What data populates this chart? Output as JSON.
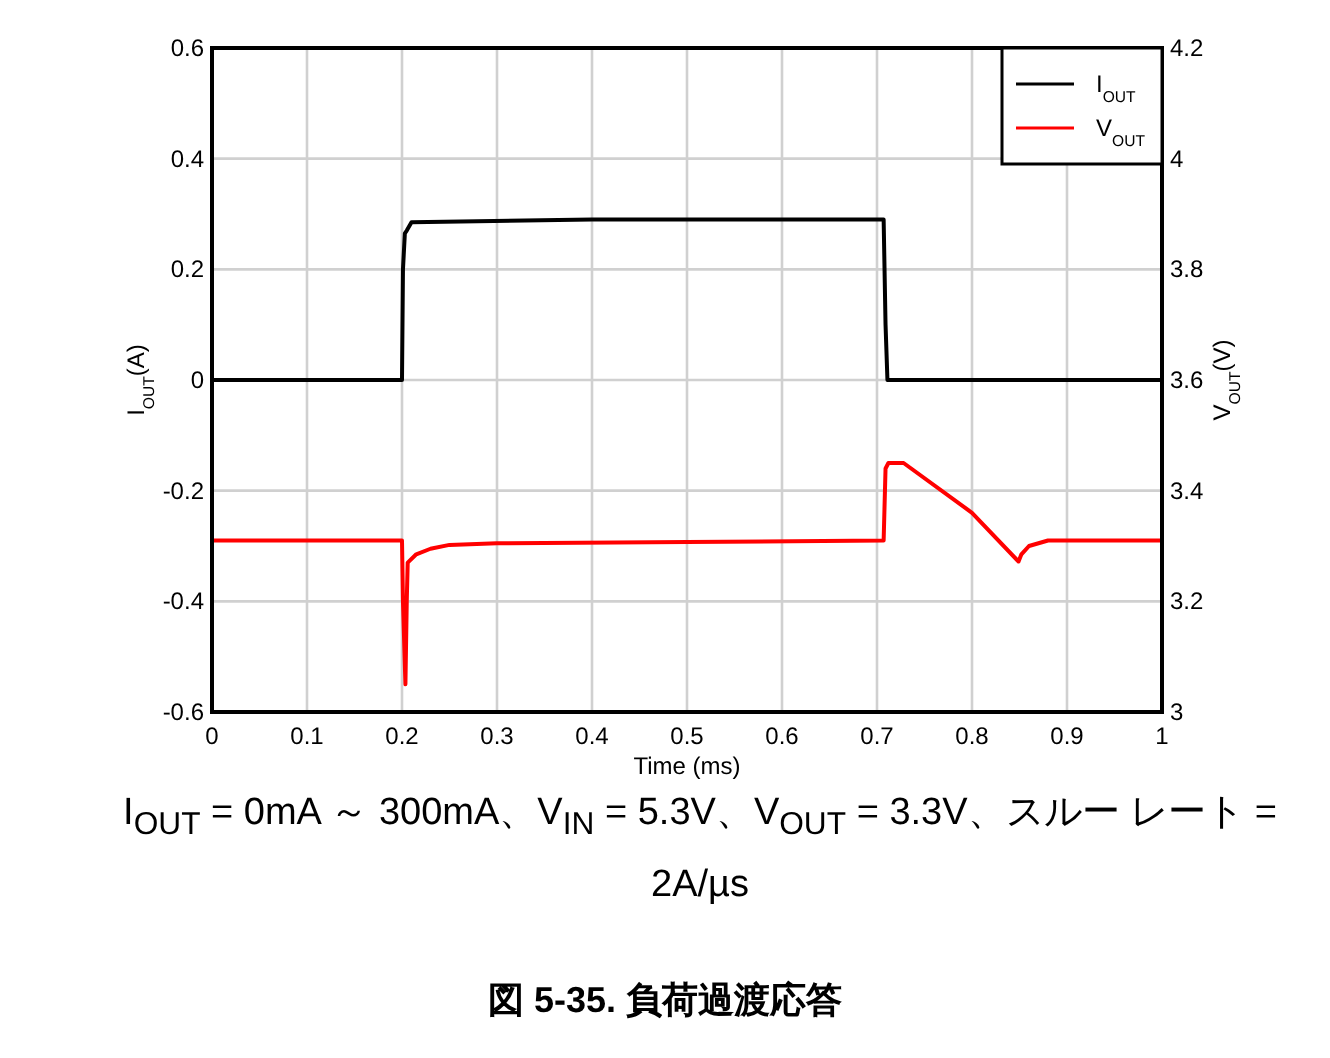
{
  "chart_data": {
    "type": "line",
    "title": "図 5-35. 負荷過渡応答",
    "xlabel": "Time (ms)",
    "ylabel": "I$_{OUT}$(A)",
    "y2label": "V$_{OUT}$(V)",
    "annotations": [
      "I$_{OUT}$ = 0mA ～ 300mA、V$_{IN}$ = 5.3V、V$_{OUT}$ = 3.3V、スルー レート = 2A/µs"
    ],
    "xlim": [
      0,
      1
    ],
    "xticks": [
      0,
      0.1,
      0.2,
      0.3,
      0.4,
      0.5,
      0.6,
      0.7,
      0.8,
      0.9,
      1
    ],
    "ylim": [
      -0.6,
      0.6
    ],
    "yticks": [
      -0.6,
      -0.4,
      -0.2,
      0,
      0.2,
      0.4,
      0.6
    ],
    "y2lim": [
      3,
      4.2
    ],
    "y2ticks": [
      3,
      3.2,
      3.4,
      3.6,
      3.8,
      4,
      4.2
    ],
    "grid": true,
    "legend": "top right",
    "series": [
      {
        "name": "I$_{OUT}$",
        "color": "#000000",
        "x": [
          0,
          0.2,
          0.201,
          0.203,
          0.205,
          0.21,
          0.4,
          0.707,
          0.709,
          0.711,
          1
        ],
        "values": [
          0,
          0,
          0.2,
          0.265,
          0.27,
          0.285,
          0.29,
          0.29,
          0.1,
          0,
          0
        ]
      },
      {
        "name": "V$_{OUT}$",
        "color": "#ff0000",
        "axis": "y2",
        "x": [
          0,
          0.2,
          0.201,
          0.2036,
          0.205,
          0.206,
          0.215,
          0.23,
          0.25,
          0.3,
          0.5,
          0.707,
          0.709,
          0.712,
          0.728,
          0.8,
          0.849,
          0.852,
          0.86,
          0.88,
          1
        ],
        "values": [
          3.31,
          3.31,
          3.2,
          3.05,
          3.2,
          3.27,
          3.285,
          3.295,
          3.302,
          3.305,
          3.307,
          3.31,
          3.44,
          3.45,
          3.45,
          3.36,
          3.272,
          3.285,
          3.3,
          3.31,
          3.31
        ]
      }
    ]
  }
}
